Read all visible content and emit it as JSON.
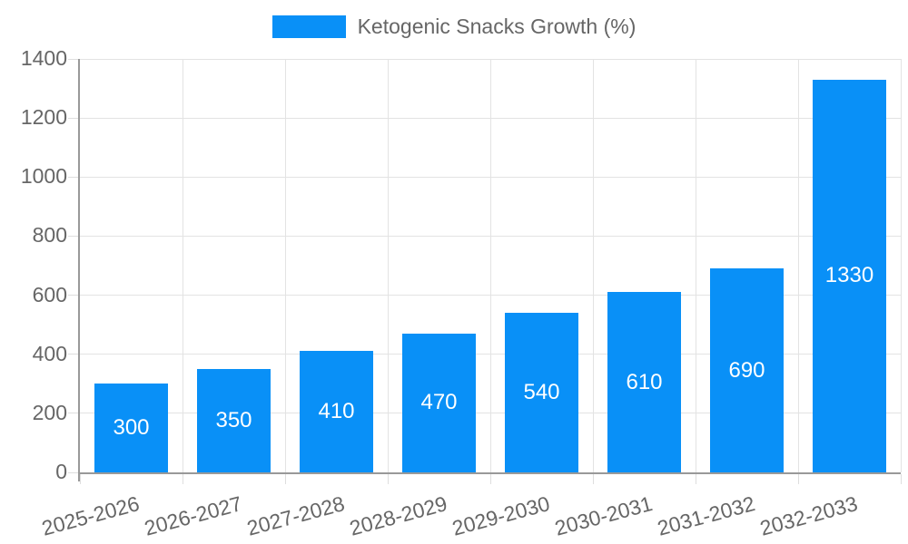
{
  "chart_data": {
    "type": "bar",
    "title": "Ketogenic Snacks Growth (%)",
    "categories": [
      "2025-2026",
      "2026-2027",
      "2027-2028",
      "2028-2029",
      "2029-2030",
      "2030-2031",
      "2031-2032",
      "2032-2033"
    ],
    "series": [
      {
        "name": "Ketogenic Snacks Growth (%)",
        "values": [
          300,
          350,
          410,
          470,
          540,
          610,
          690,
          1330
        ]
      }
    ],
    "value_labels": [
      "300",
      "350",
      "410",
      "470",
      "540",
      "610",
      "690",
      "1330"
    ],
    "xlabel": "",
    "ylabel": "",
    "ylim": [
      0,
      1400
    ],
    "yticks": [
      0,
      200,
      400,
      600,
      800,
      1000,
      1200,
      1400
    ],
    "grid": true,
    "legend_position": "top-center",
    "x_label_rotation_deg": -15,
    "colors": {
      "bar": "#0990f7",
      "grid": "#e3e3e3",
      "tick": "#dedede",
      "axis": "#999999",
      "tick_text": "#666666",
      "legend_text": "#666666",
      "value_label": "#ffffff"
    }
  }
}
